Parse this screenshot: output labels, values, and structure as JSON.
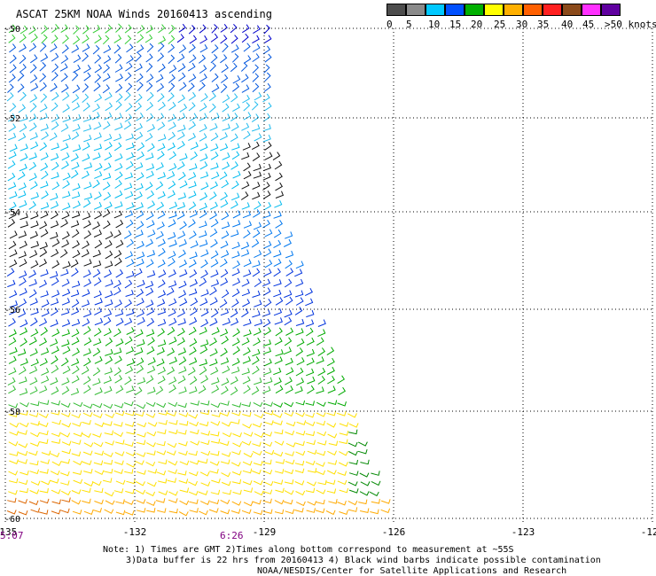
{
  "title": "ASCAT 25KM NOAA Winds 20160413 ascending",
  "legend": {
    "colors": [
      "#555555",
      "#777777",
      "#00aaff",
      "#0044ff",
      "#00bb00",
      "#0080ff",
      "#ffff00",
      "#ffaa00",
      "#ff6600",
      "#ff2020",
      "#8b4513",
      "#ff8080",
      "#ff00ff",
      "#8000c0",
      "#400080"
    ],
    "labels": [
      "0",
      "5",
      "10",
      "15",
      "20",
      "25",
      "30",
      "35",
      "40",
      "45",
      ">50 knots"
    ]
  },
  "axes": {
    "lon_ticks": [
      "-135",
      "-132",
      "-129",
      "-126",
      "-123",
      "-120"
    ],
    "lat_ticks": [
      "-50",
      "-52",
      "-54",
      "-56",
      "-58",
      "-60"
    ]
  },
  "times": [
    "5:07",
    "6:26"
  ],
  "notes": [
    "Note: 1) Times are GMT 2)Times along bottom correspond to measurement at ~55S",
    "3)Data buffer is 22 hrs from 20160413 4) Black wind barbs indicate possible contamination",
    "NOAA/NESDIS/Center for Satellite Applications and Research"
  ],
  "chart_data": {
    "type": "map",
    "title": "ASCAT 25KM NOAA Winds 20160413 ascending",
    "xlim": [
      -135,
      -120
    ],
    "ylim": [
      -60,
      -50
    ],
    "x_ticks": [
      -135,
      -132,
      -129,
      -126,
      -123,
      -120
    ],
    "y_ticks": [
      -50,
      -52,
      -54,
      -56,
      -58,
      -60
    ],
    "colorbar_labels": [
      "0",
      "5",
      "10",
      "15",
      "20",
      "25",
      "30",
      "35",
      "40",
      "45",
      ">50 knots"
    ],
    "grid": true,
    "swath_bands": [
      {
        "lat_range": [
          -50,
          -50.5
        ],
        "color": "#00bb00",
        "speed_kn": "15-20"
      },
      {
        "lat_range": [
          -50.5,
          -51.5
        ],
        "color": "#0044ff",
        "speed_kn": "10-15"
      },
      {
        "lat_range": [
          -51.5,
          -54
        ],
        "color": "#00aaff",
        "speed_kn": "5-10"
      },
      {
        "lat_range": [
          -54,
          -55
        ],
        "color": "#111111",
        "speed_kn": "contaminated"
      },
      {
        "lat_range": [
          -55,
          -56.5
        ],
        "color": "#0080ff",
        "speed_kn": "10-15"
      },
      {
        "lat_range": [
          -56.5,
          -57.5
        ],
        "color": "#00bb00",
        "speed_kn": "15-20"
      },
      {
        "lat_range": [
          -57.5,
          -59.3
        ],
        "color": "#ffdd00",
        "speed_kn": "20-25"
      },
      {
        "lat_range": [
          -59.3,
          -60
        ],
        "color": "#ff8c00",
        "speed_kn": "25-30"
      }
    ]
  }
}
